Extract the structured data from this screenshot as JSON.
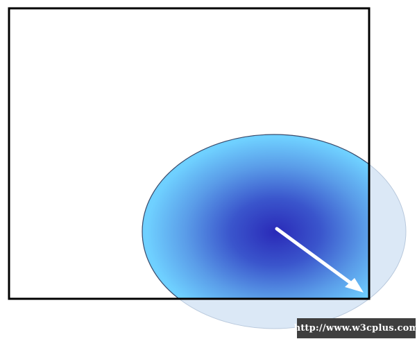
{
  "watermark": {
    "text": "http://www.w3cplus.com"
  },
  "colors": {
    "gradient_center": "#2f2fbf",
    "gradient_mid": "#4f7fe0",
    "gradient_edge": "#66ccff",
    "faded_fill": "#d9e8f7",
    "box_stroke": "#000000",
    "arrow": "#ffffff"
  }
}
